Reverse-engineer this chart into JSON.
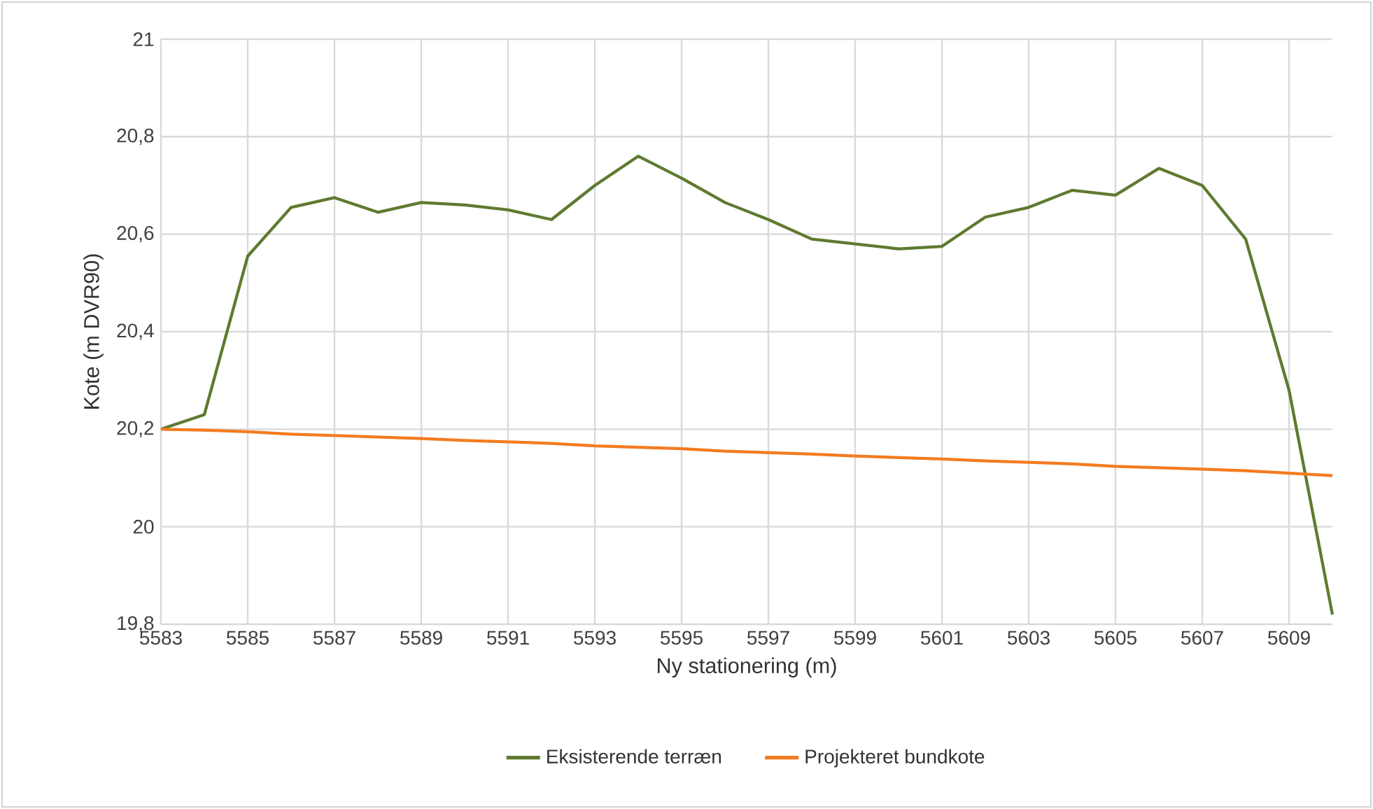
{
  "chart_data": {
    "type": "line",
    "xlabel": "Ny stationering (m)",
    "ylabel": "Kote (m DVR90)",
    "x": [
      5583,
      5584,
      5585,
      5586,
      5587,
      5588,
      5589,
      5590,
      5591,
      5592,
      5593,
      5594,
      5595,
      5596,
      5597,
      5598,
      5599,
      5600,
      5601,
      5602,
      5603,
      5604,
      5605,
      5606,
      5607,
      5608,
      5609,
      5610
    ],
    "series": [
      {
        "name": "Eksisterende terræn",
        "color": "#5f7a30",
        "values": [
          20.2,
          20.23,
          20.555,
          20.655,
          20.675,
          20.645,
          20.665,
          20.66,
          20.65,
          20.63,
          20.7,
          20.76,
          20.715,
          20.665,
          20.63,
          20.59,
          20.58,
          20.57,
          20.575,
          20.635,
          20.655,
          20.69,
          20.68,
          20.735,
          20.7,
          20.59,
          20.28,
          19.82
        ]
      },
      {
        "name": "Projekteret bundkote",
        "color": "#f47b20",
        "values": [
          20.2,
          20.198,
          20.195,
          20.19,
          20.187,
          20.184,
          20.181,
          20.177,
          20.174,
          20.171,
          20.166,
          20.163,
          20.16,
          20.155,
          20.152,
          20.149,
          20.145,
          20.142,
          20.139,
          20.135,
          20.132,
          20.129,
          20.124,
          20.121,
          20.118,
          20.115,
          20.11,
          20.105
        ]
      }
    ],
    "xlim": [
      5583,
      5610
    ],
    "xticks": [
      5583,
      5585,
      5587,
      5589,
      5591,
      5593,
      5595,
      5597,
      5599,
      5601,
      5603,
      5605,
      5607,
      5609
    ],
    "ylim": [
      19.8,
      21
    ],
    "yticks": [
      {
        "value": 19.8,
        "label": "19,8"
      },
      {
        "value": 20,
        "label": "20"
      },
      {
        "value": 20.2,
        "label": "20,2"
      },
      {
        "value": 20.4,
        "label": "20,4"
      },
      {
        "value": 20.6,
        "label": "20,6"
      },
      {
        "value": 20.8,
        "label": "20,8"
      },
      {
        "value": 21,
        "label": "21"
      }
    ],
    "grid": true,
    "legend": "bottom",
    "marker": "none",
    "line_style": "solid"
  }
}
